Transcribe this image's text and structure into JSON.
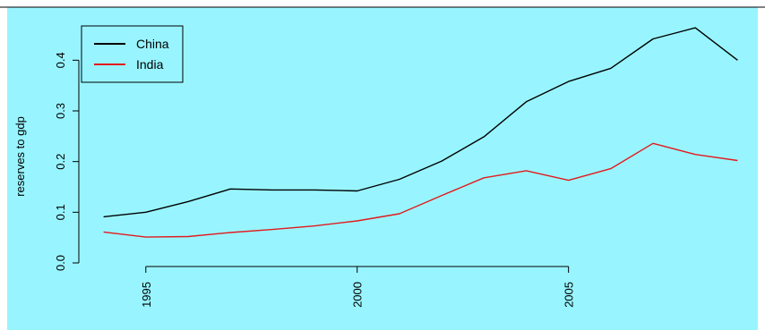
{
  "chart_data": {
    "type": "line",
    "title": "",
    "xlabel": "",
    "ylabel": "reserves to gdp",
    "x": [
      1994,
      1995,
      1996,
      1997,
      1998,
      1999,
      2000,
      2001,
      2002,
      2003,
      2004,
      2005,
      2006,
      2007,
      2008,
      2009
    ],
    "series": [
      {
        "name": "China",
        "color": "#000000",
        "values": [
          0.091,
          0.1,
          0.121,
          0.146,
          0.144,
          0.144,
          0.142,
          0.165,
          0.201,
          0.249,
          0.318,
          0.358,
          0.384,
          0.442,
          0.464,
          0.4
        ]
      },
      {
        "name": "India",
        "color": "#e31a1c",
        "values": [
          0.061,
          0.051,
          0.052,
          0.06,
          0.066,
          0.073,
          0.083,
          0.097,
          0.133,
          0.168,
          0.182,
          0.163,
          0.186,
          0.236,
          0.214,
          0.202
        ]
      }
    ],
    "xlim": [
      1993.5,
      2009.5
    ],
    "ylim": [
      0.0,
      0.48
    ],
    "x_ticks": [
      "1995",
      "2000",
      "2005"
    ],
    "y_ticks": [
      "0.0",
      "0.1",
      "0.2",
      "0.3",
      "0.4"
    ],
    "background_color": "#98f5ff",
    "grid": false,
    "legend_position": "top-left"
  }
}
